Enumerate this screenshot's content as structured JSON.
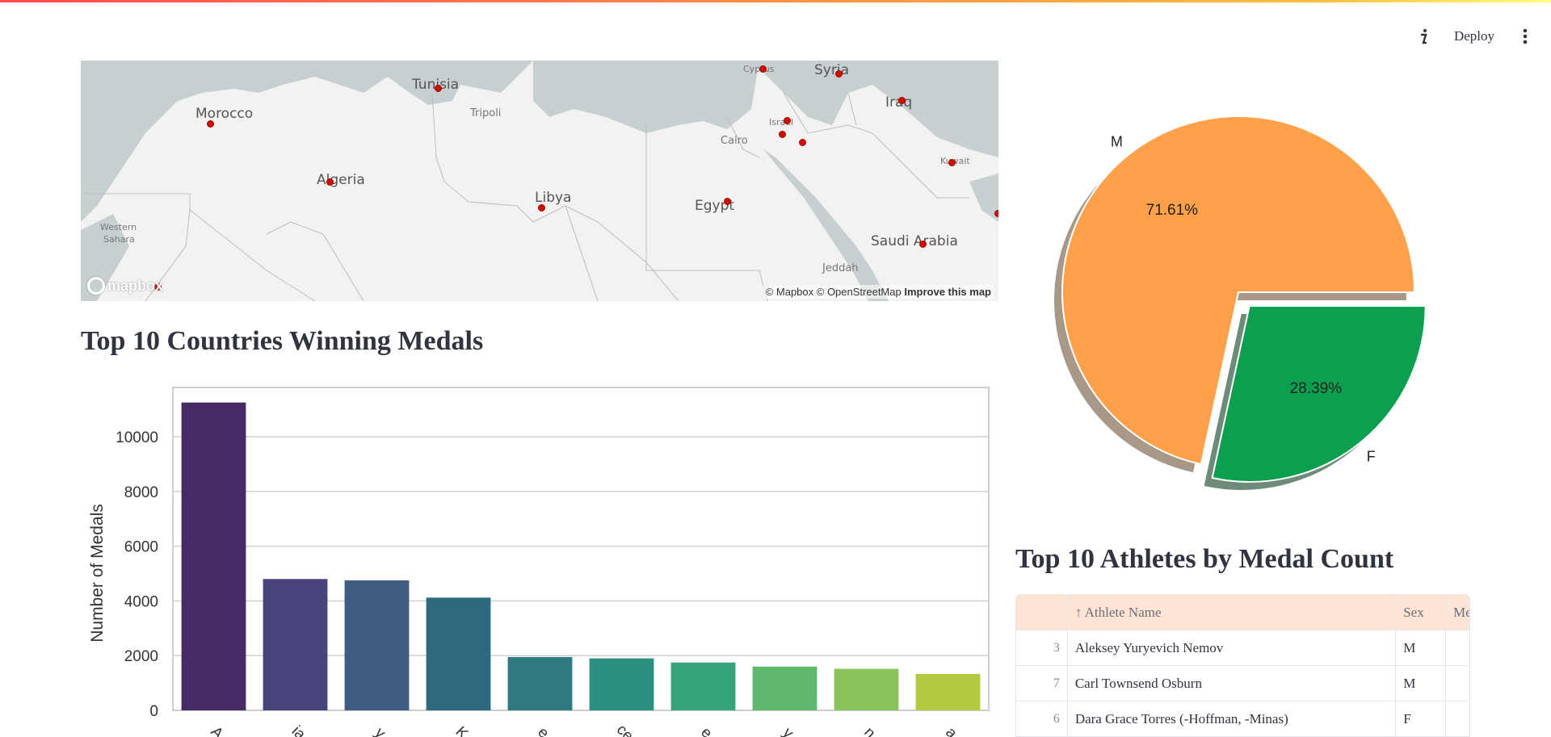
{
  "header": {
    "deploy_label": "Deploy",
    "info_icon": "info-icon",
    "menu_icon": "kebab-menu-icon"
  },
  "map": {
    "countries": [
      "Morocco",
      "Tunisia",
      "Algeria",
      "Libya",
      "Egypt",
      "Cyprus",
      "Syria",
      "Iraq",
      "Israel",
      "Kuwait",
      "Saudi Arabia"
    ],
    "cities": [
      "Tripoli",
      "Cairo",
      "Jeddah"
    ],
    "regions": [
      "Western",
      "Sahara"
    ],
    "attribution": "© Mapbox © OpenStreetMap",
    "improve_link": "Improve this map",
    "logo_text": "mapbox"
  },
  "bar_section": {
    "title": "Top 10 Countries Winning Medals"
  },
  "table_section": {
    "title": "Top 10 Athletes by Medal Count",
    "columns": {
      "name": "↑ Athlete Name",
      "sex": "Sex",
      "medal": "Me"
    },
    "rows": [
      {
        "idx": "3",
        "name": "Aleksey Yuryevich Nemov",
        "sex": "M"
      },
      {
        "idx": "7",
        "name": "Carl Townsend Osburn",
        "sex": "M"
      },
      {
        "idx": "6",
        "name": "Dara Grace Torres (-Hoffman, -Minas)",
        "sex": "F"
      }
    ]
  },
  "chart_data": [
    {
      "type": "bar",
      "title": "Top 10 Countries Winning Medals",
      "xlabel": "",
      "ylabel": "Number of Medals",
      "ylim": [
        0,
        11800
      ],
      "yticks": [
        0,
        2000,
        4000,
        6000,
        8000,
        10000
      ],
      "categories": [
        "USA",
        "Russia",
        "Germany",
        "UK",
        "France",
        "Italy",
        "Sweden",
        "Canada",
        "Australia",
        "Hungary"
      ],
      "tick_labels_visible": [
        "A",
        "ia",
        "y",
        "K",
        "e",
        "ce",
        "e",
        "y",
        "n",
        "a"
      ],
      "values": [
        11250,
        4800,
        4750,
        4120,
        1950,
        1900,
        1750,
        1600,
        1520,
        1330
      ],
      "colors": [
        "#472a65",
        "#48437c",
        "#405c80",
        "#2e6a7f",
        "#2d7b80",
        "#2a8e80",
        "#36a37b",
        "#5fb86e",
        "#8bc45a",
        "#b3c93f"
      ]
    },
    {
      "type": "pie",
      "title": "",
      "labels": [
        "M",
        "F"
      ],
      "values": [
        71.61,
        28.39
      ],
      "value_labels": [
        "71.61%",
        "28.39%"
      ],
      "colors": [
        "#ffa04a",
        "#0ba050"
      ],
      "explode": [
        0,
        0.1
      ],
      "shadow": true
    }
  ]
}
